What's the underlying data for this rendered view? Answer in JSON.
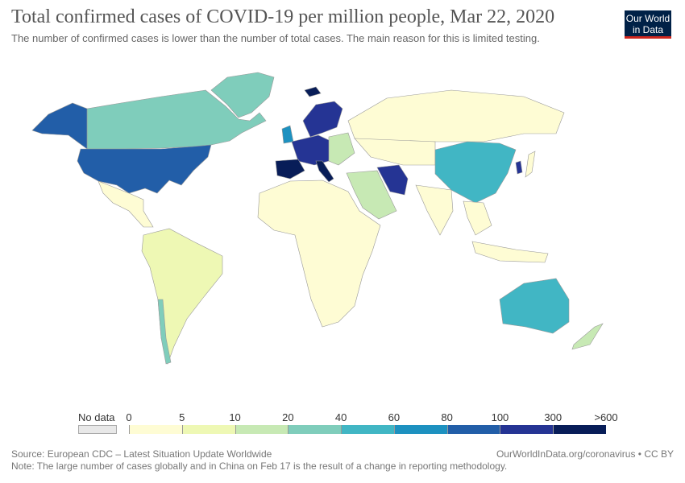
{
  "header": {
    "title": "Total confirmed cases of COVID-19 per million people, Mar 22, 2020",
    "subtitle": "The number of confirmed cases is lower than the number of total cases. The main reason for this is limited testing.",
    "logo": "Our World in Data"
  },
  "legend": {
    "no_data_label": "No data",
    "no_data_color": "#e8e8e8",
    "ticks": [
      "0",
      "5",
      "10",
      "20",
      "40",
      "60",
      "80",
      "100",
      "300",
      ">600"
    ],
    "colors": [
      "#fefcd4",
      "#eef8b4",
      "#c7e9b4",
      "#7fcdbb",
      "#41b6c4",
      "#1d91c0",
      "#225ea8",
      "#253494",
      "#081d58"
    ]
  },
  "footer": {
    "source": "Source: European CDC – Latest Situation Update Worldwide",
    "url": "OurWorldInData.org/coronavirus • CC BY",
    "note": "Note: The large number of cases globally and in China on Feb 17 is the result of a change in reporting methodology."
  }
}
